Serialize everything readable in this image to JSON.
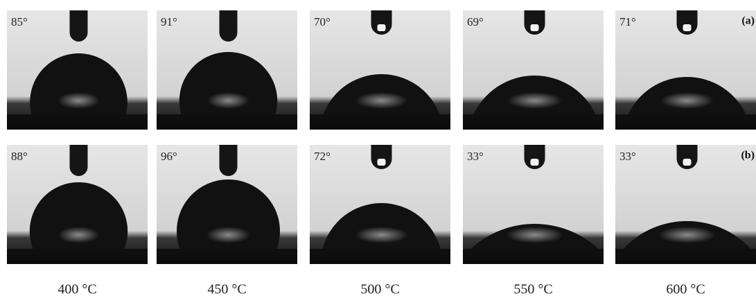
{
  "rows": [
    {
      "label": "(a)",
      "angles": [
        "85°",
        "91°",
        "70°",
        "69°",
        "71°"
      ]
    },
    {
      "label": "(b)",
      "angles": [
        "88°",
        "96°",
        "72°",
        "33°",
        "33°"
      ]
    }
  ],
  "temperatures": [
    "400 °C",
    "450 °C",
    "500 °C",
    "550 °C",
    "600 °C"
  ]
}
